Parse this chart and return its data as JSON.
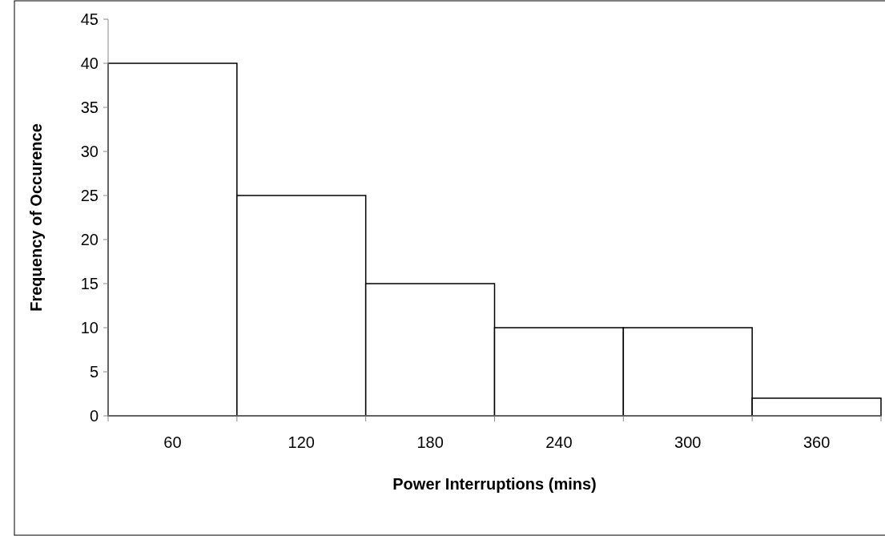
{
  "chart_data": {
    "type": "bar",
    "xlabel": "Power Interruptions (mins)",
    "ylabel": "Frequency of Occurence",
    "categories": [
      "60",
      "120",
      "180",
      "240",
      "300",
      "360"
    ],
    "values": [
      40,
      25,
      15,
      10,
      10,
      2
    ],
    "color": "#ffffff",
    "ylim": [
      0,
      45
    ],
    "yticks": [
      0,
      5,
      10,
      15,
      20,
      25,
      30,
      35,
      40,
      45
    ],
    "grid": false
  }
}
